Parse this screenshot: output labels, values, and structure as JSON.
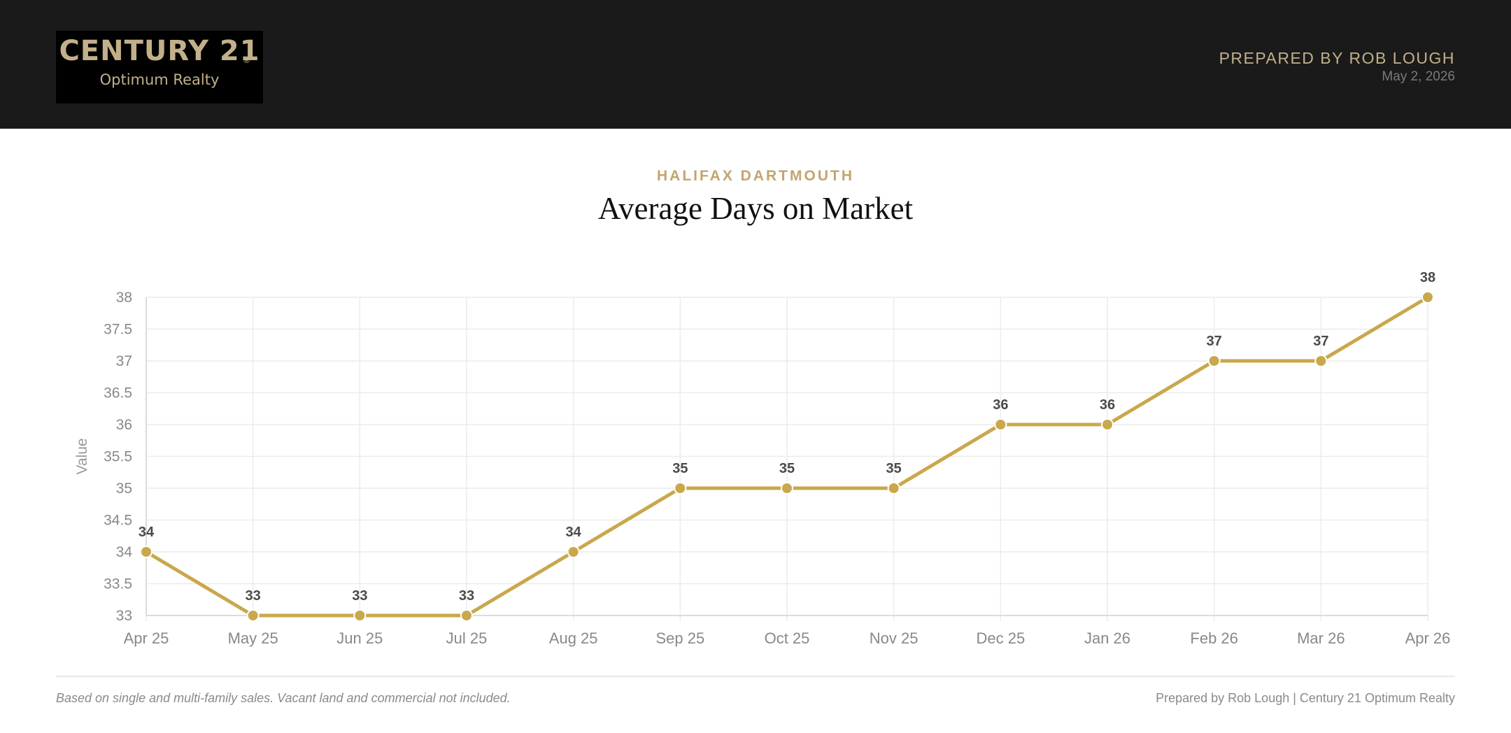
{
  "header": {
    "logo_main": "CENTURY 21",
    "logo_registered": "®",
    "logo_sub": "Optimum Realty",
    "prepared_by": "PREPARED BY ROB LOUGH",
    "date": "May 2, 2026"
  },
  "region": "HALIFAX DARTMOUTH",
  "title": "Average Days on Market",
  "footer": {
    "note": "Based on single and multi-family sales. Vacant land and commercial not included.",
    "credit": "Prepared by Rob Lough | Century 21 Optimum Realty"
  },
  "colors": {
    "accent": "#c9a84c",
    "brand_gold": "#c2b08a",
    "header_bg": "#1a1a1a"
  },
  "chart_data": {
    "type": "line",
    "title": "Average Days on Market",
    "subtitle": "HALIFAX DARTMOUTH",
    "xlabel": "",
    "ylabel": "Value",
    "categories": [
      "Apr 25",
      "May 25",
      "Jun 25",
      "Jul 25",
      "Aug 25",
      "Sep 25",
      "Oct 25",
      "Nov 25",
      "Dec 25",
      "Jan 26",
      "Feb 26",
      "Mar 26",
      "Apr 26"
    ],
    "series": [
      {
        "values": [
          34,
          33,
          33,
          33,
          34,
          35,
          35,
          35,
          36,
          36,
          37,
          37,
          38
        ]
      }
    ],
    "ylim": [
      33,
      38
    ],
    "yticks": [
      "33",
      "33.5",
      "34",
      "34.5",
      "35",
      "35.5",
      "36",
      "36.5",
      "37",
      "37.5",
      "38"
    ],
    "grid": true,
    "data_labels": true,
    "legend": "none"
  }
}
